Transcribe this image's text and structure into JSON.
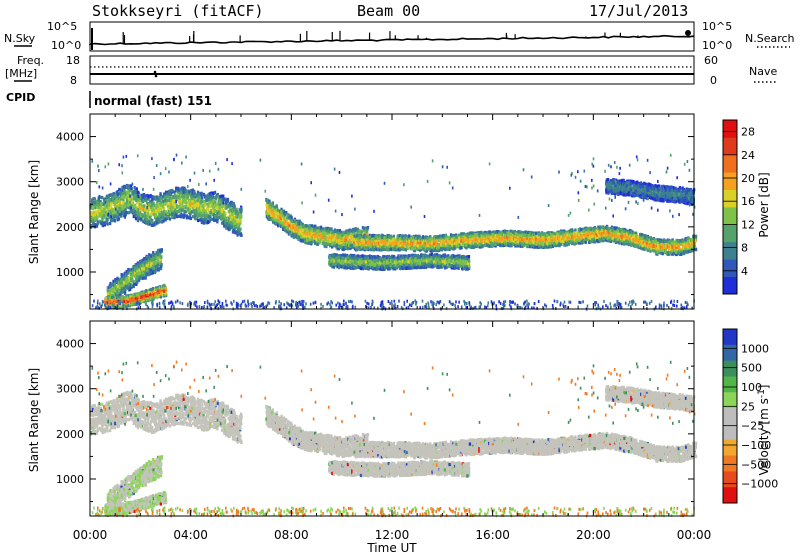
{
  "header": {
    "station": "Stokkseyri (fitACF)",
    "beam": "Beam 00",
    "date": "17/Jul/2013"
  },
  "panels": {
    "nsky_label": "N.Sky",
    "nsky_ticks": [
      "10^5",
      "10^0"
    ],
    "nsearch_label": "N.Search",
    "nsearch_ticks": [
      "10^5",
      "10^0"
    ],
    "freq_label_1": "Freq.",
    "freq_label_2": "[MHz]",
    "freq_ticks": [
      "18",
      "8"
    ],
    "nave_label": "Nave",
    "nave_ticks": [
      "60",
      "0"
    ],
    "cpid_label": "CPID",
    "cpid_text": "normal (fast) 151"
  },
  "colors": {
    "power_scale": [
      "#1f2fd8",
      "#2f58b8",
      "#3d8090",
      "#55a36a",
      "#7ec24a",
      "#d9d028",
      "#f4a020",
      "#f07020",
      "#e03a1c",
      "#e01010"
    ],
    "velocity_scale": [
      "#2236c8",
      "#3166a8",
      "#3c8f5c",
      "#52b548",
      "#8bd65a",
      "#bdbdbd",
      "#bdbdbd",
      "#f2a830",
      "#f07a24",
      "#e84a1c",
      "#e01010"
    ],
    "grey": "#c4c4bc"
  },
  "chart_data": [
    {
      "type": "heatmap",
      "title": "",
      "xlabel": "",
      "ylabel": "Slant Range [km]",
      "xlim": [
        "00:00",
        "24:00"
      ],
      "x_ticks": [
        "00:00",
        "04:00",
        "08:00",
        "12:00",
        "16:00",
        "20:00",
        "00:00"
      ],
      "ylim": [
        180,
        4500
      ],
      "y_ticks": [
        "1000",
        "2000",
        "3000",
        "4000"
      ],
      "colorbar_label": "Power [dB]",
      "colorbar_ticks": [
        "28",
        "24",
        "20",
        "16",
        "12",
        "8",
        "4"
      ],
      "colorbar_range": [
        0,
        30
      ],
      "bands": [
        {
          "points": [
            [
              0.0,
              2300
            ],
            [
              0.5,
              2350
            ],
            [
              1.0,
              2450
            ],
            [
              1.5,
              2650
            ],
            [
              2.0,
              2400
            ],
            [
              2.5,
              2350
            ],
            [
              3.0,
              2450
            ],
            [
              3.5,
              2550
            ],
            [
              4.0,
              2500
            ],
            [
              4.5,
              2400
            ],
            [
              5.0,
              2450
            ],
            [
              5.5,
              2250
            ],
            [
              6.0,
              2100
            ]
          ],
          "width": 500,
          "power": 13
        },
        {
          "points": [
            [
              0.7,
              500
            ],
            [
              1.2,
              700
            ],
            [
              1.8,
              950
            ],
            [
              2.3,
              1150
            ],
            [
              2.8,
              1300
            ]
          ],
          "width": 350,
          "power": 12
        },
        {
          "points": [
            [
              0.6,
              330
            ],
            [
              1.2,
              330
            ],
            [
              1.8,
              400
            ],
            [
              2.4,
              500
            ],
            [
              3.0,
              600
            ]
          ],
          "width": 180,
          "power": 22
        },
        {
          "points": [
            [
              7.0,
              2400
            ],
            [
              7.5,
              2200
            ],
            [
              8.0,
              2000
            ],
            [
              8.5,
              1850
            ],
            [
              9.0,
              1800
            ],
            [
              9.5,
              1750
            ],
            [
              10.0,
              1700
            ],
            [
              10.5,
              1750
            ],
            [
              11.0,
              1800
            ]
          ],
          "width": 320,
          "power": 16
        },
        {
          "points": [
            [
              9.5,
              1250
            ],
            [
              10.5,
              1220
            ],
            [
              11.5,
              1200
            ],
            [
              12.5,
              1220
            ],
            [
              13.5,
              1250
            ],
            [
              14.5,
              1220
            ],
            [
              15.0,
              1200
            ]
          ],
          "width": 220,
          "power": 12
        },
        {
          "points": [
            [
              10.5,
              1650
            ],
            [
              12.0,
              1650
            ],
            [
              13.5,
              1620
            ],
            [
              15.0,
              1700
            ],
            [
              16.5,
              1750
            ],
            [
              18.0,
              1700
            ],
            [
              19.5,
              1800
            ],
            [
              20.5,
              1850
            ],
            [
              21.5,
              1750
            ],
            [
              22.5,
              1550
            ],
            [
              23.5,
              1550
            ],
            [
              24.0,
              1650
            ]
          ],
          "width": 250,
          "power": 17
        },
        {
          "points": [
            [
              20.5,
              2900
            ],
            [
              21.5,
              2850
            ],
            [
              22.5,
              2750
            ],
            [
              23.5,
              2700
            ],
            [
              24.0,
              2650
            ]
          ],
          "width": 250,
          "power": 7
        }
      ]
    },
    {
      "type": "heatmap",
      "title": "",
      "xlabel": "Time UT",
      "ylabel": "Slant Range [km]",
      "xlim": [
        "00:00",
        "24:00"
      ],
      "x_ticks": [
        "00:00",
        "04:00",
        "08:00",
        "12:00",
        "16:00",
        "20:00",
        "00:00"
      ],
      "ylim": [
        180,
        4500
      ],
      "y_ticks": [
        "1000",
        "2000",
        "3000",
        "4000"
      ],
      "colorbar_label": "Velocity [m s",
      "colorbar_label_exp": "-1",
      "colorbar_label_end": "]",
      "colorbar_ticks": [
        "1000",
        "500",
        "100",
        "25",
        "−25",
        "−100",
        "−500",
        "−1000"
      ]
    }
  ]
}
